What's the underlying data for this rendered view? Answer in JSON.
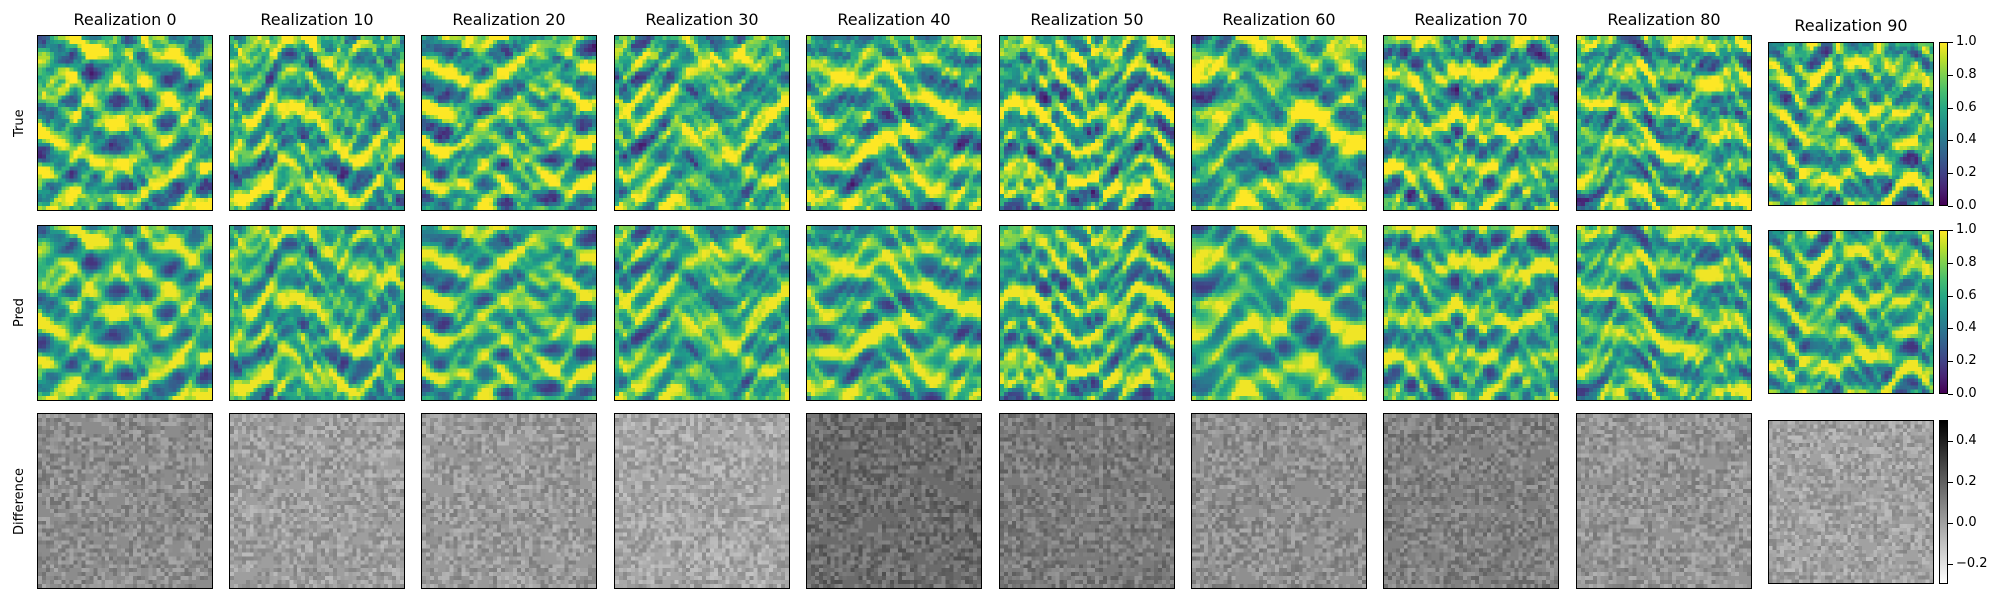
{
  "chart_data": {
    "type": "heatmap",
    "columns": [
      "Realization 0",
      "Realization 10",
      "Realization 20",
      "Realization 30",
      "Realization 40",
      "Realization 50",
      "Realization 60",
      "Realization 70",
      "Realization 80",
      "Realization 90"
    ],
    "rows": [
      "True",
      "Pred",
      "Difference"
    ],
    "colorbars": [
      {
        "row": "True",
        "colormap": "viridis",
        "range": [
          0.0,
          1.0
        ],
        "tick_values": [
          0.0,
          0.2,
          0.4,
          0.6,
          0.8,
          1.0
        ],
        "tick_labels": [
          "0.0",
          "0.2",
          "0.4",
          "0.6",
          "0.8",
          "1.0"
        ]
      },
      {
        "row": "Pred",
        "colormap": "viridis",
        "range": [
          0.0,
          1.0
        ],
        "tick_values": [
          0.0,
          0.2,
          0.4,
          0.6,
          0.8,
          1.0
        ],
        "tick_labels": [
          "0.0",
          "0.2",
          "0.4",
          "0.6",
          "0.8",
          "1.0"
        ]
      },
      {
        "row": "Difference",
        "colormap": "gray_r",
        "range": [
          -0.3,
          0.5
        ],
        "tick_values": [
          -0.2,
          0.0,
          0.2,
          0.4
        ],
        "tick_labels": [
          "−0.2",
          "0.0",
          "0.2",
          "0.4"
        ]
      }
    ],
    "grid": false,
    "axis_ticks": false
  }
}
